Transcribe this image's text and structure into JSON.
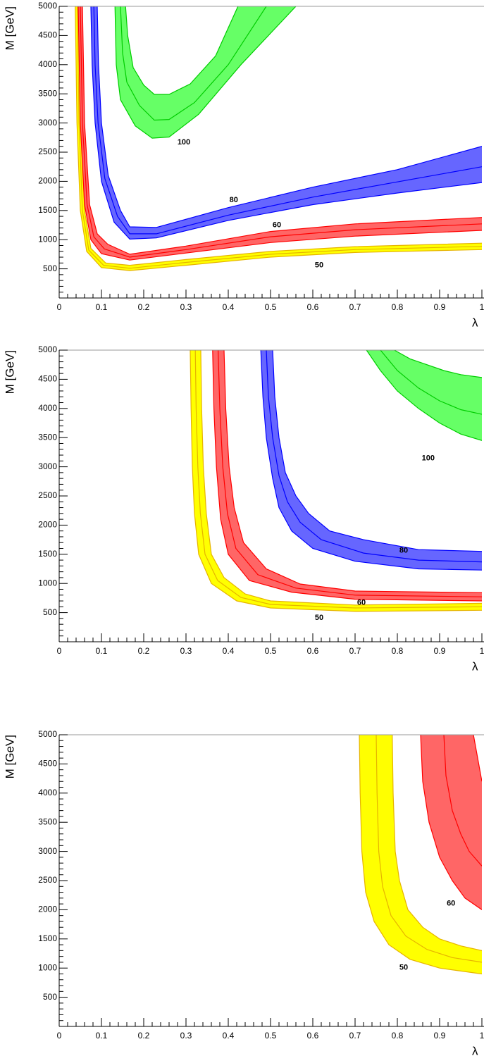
{
  "chart_data": [
    {
      "type": "band",
      "x_label": "λ",
      "y_label": "M [GeV]",
      "xlim": [
        0,
        1
      ],
      "ylim": [
        0,
        5000
      ],
      "xticks": [
        0,
        0.1,
        0.2,
        0.3,
        0.4,
        0.5,
        0.6,
        0.7,
        0.8,
        0.9,
        1
      ],
      "yticks": [
        500,
        1000,
        1500,
        2000,
        2500,
        3000,
        3500,
        4000,
        4500,
        5000
      ],
      "series": [
        {
          "name": "50",
          "color": "#e6b400",
          "fill": "#ffff00",
          "label_x": 0.615,
          "label_y": 560,
          "lower": {
            "x": [
              0.038,
              0.042,
              0.05,
              0.065,
              0.1,
              0.167,
              0.3,
              0.5,
              0.7,
              1.0
            ],
            "y": [
              5000,
              3000,
              1500,
              800,
              520,
              470,
              560,
              700,
              780,
              830
            ]
          },
          "center": {
            "x": [
              0.043,
              0.047,
              0.055,
              0.07,
              0.105,
              0.167,
              0.3,
              0.5,
              0.7,
              1.0
            ],
            "y": [
              5000,
              3000,
              1500,
              820,
              560,
              510,
              610,
              750,
              830,
              885
            ]
          },
          "upper": {
            "x": [
              0.048,
              0.052,
              0.06,
              0.075,
              0.11,
              0.167,
              0.3,
              0.5,
              0.7,
              1.0
            ],
            "y": [
              5000,
              3000,
              1500,
              850,
              600,
              560,
              660,
              800,
              880,
              940
            ]
          }
        },
        {
          "name": "60",
          "color": "#ff0000",
          "fill": "#ff6666",
          "label_x": 0.515,
          "label_y": 1250,
          "lower": {
            "x": [
              0.045,
              0.05,
              0.06,
              0.075,
              0.1,
              0.167,
              0.3,
              0.5,
              0.7,
              1.0
            ],
            "y": [
              5000,
              3000,
              1600,
              1000,
              760,
              650,
              770,
              950,
              1060,
              1160
            ]
          },
          "center": {
            "x": [
              0.05,
              0.055,
              0.066,
              0.082,
              0.107,
              0.167,
              0.3,
              0.5,
              0.7,
              1.0
            ],
            "y": [
              5000,
              3000,
              1600,
              1050,
              840,
              700,
              830,
              1050,
              1170,
              1270
            ]
          },
          "upper": {
            "x": [
              0.055,
              0.06,
              0.072,
              0.09,
              0.115,
              0.167,
              0.3,
              0.5,
              0.7,
              1.0
            ],
            "y": [
              5000,
              3000,
              1600,
              1100,
              920,
              750,
              890,
              1140,
              1270,
              1380
            ]
          }
        },
        {
          "name": "80",
          "color": "#0000ff",
          "fill": "#6666ff",
          "label_x": 0.413,
          "label_y": 1675,
          "lower": {
            "x": [
              0.075,
              0.078,
              0.085,
              0.1,
              0.13,
              0.167,
              0.23,
              0.4,
              0.6,
              0.8,
              1.0
            ],
            "y": [
              5000,
              4000,
              3000,
              2000,
              1300,
              1010,
              1030,
              1330,
              1600,
              1800,
              1980
            ]
          },
          "center": {
            "x": [
              0.082,
              0.085,
              0.092,
              0.108,
              0.138,
              0.167,
              0.23,
              0.4,
              0.6,
              0.8,
              1.0
            ],
            "y": [
              5000,
              4000,
              3000,
              2050,
              1400,
              1100,
              1100,
              1420,
              1730,
              1990,
              2250
            ]
          },
          "upper": {
            "x": [
              0.09,
              0.093,
              0.1,
              0.116,
              0.145,
              0.167,
              0.23,
              0.4,
              0.6,
              0.8,
              1.0
            ],
            "y": [
              5000,
              4000,
              3000,
              2100,
              1500,
              1220,
              1210,
              1550,
              1900,
              2200,
              2600
            ]
          }
        },
        {
          "name": "100",
          "color": "#00cc00",
          "fill": "#66ff66",
          "label_x": 0.295,
          "label_y": 2670,
          "lower": {
            "x": [
              0.132,
              0.135,
              0.145,
              0.18,
              0.22,
              0.26,
              0.33,
              0.43,
              0.56
            ],
            "y": [
              5000,
              4000,
              3400,
              2950,
              2740,
              2760,
              3150,
              4000,
              5000
            ]
          },
          "center": {
            "x": [
              0.145,
              0.15,
              0.16,
              0.19,
              0.225,
              0.26,
              0.32,
              0.4,
              0.49
            ],
            "y": [
              5000,
              4200,
              3700,
              3300,
              3050,
              3060,
              3350,
              4000,
              5000
            ]
          },
          "upper": {
            "x": [
              0.157,
              0.162,
              0.175,
              0.2,
              0.225,
              0.26,
              0.31,
              0.37,
              0.423
            ],
            "y": [
              5000,
              4500,
              3950,
              3650,
              3490,
              3490,
              3670,
              4150,
              5000
            ]
          }
        }
      ]
    },
    {
      "type": "band",
      "x_label": "λ",
      "y_label": "M [GeV]",
      "xlim": [
        0,
        1
      ],
      "ylim": [
        0,
        5000
      ],
      "xticks": [
        0,
        0.1,
        0.2,
        0.3,
        0.4,
        0.5,
        0.6,
        0.7,
        0.8,
        0.9,
        1
      ],
      "yticks": [
        500,
        1000,
        1500,
        2000,
        2500,
        3000,
        3500,
        4000,
        4500,
        5000
      ],
      "series": [
        {
          "name": "50",
          "color": "#e6b400",
          "fill": "#ffff00",
          "label_x": 0.615,
          "label_y": 410,
          "lower": {
            "x": [
              0.31,
              0.312,
              0.315,
              0.32,
              0.33,
              0.36,
              0.42,
              0.5,
              0.7,
              1.0
            ],
            "y": [
              5000,
              4000,
              3000,
              2200,
              1500,
              1000,
              700,
              580,
              520,
              540
            ]
          },
          "center": {
            "x": [
              0.322,
              0.324,
              0.328,
              0.334,
              0.345,
              0.375,
              0.43,
              0.5,
              0.7,
              1.0
            ],
            "y": [
              5000,
              4000,
              3000,
              2200,
              1500,
              1050,
              760,
              640,
              580,
              600
            ]
          },
          "upper": {
            "x": [
              0.335,
              0.337,
              0.341,
              0.348,
              0.36,
              0.39,
              0.44,
              0.5,
              0.7,
              1.0
            ],
            "y": [
              5000,
              4000,
              3000,
              2200,
              1500,
              1100,
              820,
              700,
              630,
              660
            ]
          }
        },
        {
          "name": "60",
          "color": "#ff0000",
          "fill": "#ff6666",
          "label_x": 0.715,
          "label_y": 670,
          "lower": {
            "x": [
              0.363,
              0.366,
              0.372,
              0.382,
              0.4,
              0.45,
              0.55,
              0.7,
              1.0
            ],
            "y": [
              5000,
              4000,
              3000,
              2100,
              1500,
              1050,
              850,
              730,
              700
            ]
          },
          "center": {
            "x": [
              0.376,
              0.38,
              0.387,
              0.398,
              0.418,
              0.47,
              0.56,
              0.7,
              1.0
            ],
            "y": [
              5000,
              4000,
              3000,
              2200,
              1600,
              1150,
              920,
              800,
              770
            ]
          },
          "upper": {
            "x": [
              0.39,
              0.394,
              0.402,
              0.414,
              0.436,
              0.49,
              0.57,
              0.7,
              1.0
            ],
            "y": [
              5000,
              4000,
              3000,
              2300,
              1700,
              1250,
              990,
              870,
              840
            ]
          }
        },
        {
          "name": "80",
          "color": "#0000ff",
          "fill": "#6666ff",
          "label_x": 0.815,
          "label_y": 1560,
          "lower": {
            "x": [
              0.477,
              0.482,
              0.49,
              0.505,
              0.52,
              0.55,
              0.6,
              0.7,
              0.85,
              1.0
            ],
            "y": [
              5000,
              4200,
              3500,
              2800,
              2300,
              1900,
              1600,
              1380,
              1250,
              1230
            ]
          },
          "center": {
            "x": [
              0.49,
              0.495,
              0.505,
              0.52,
              0.54,
              0.57,
              0.62,
              0.72,
              0.85,
              1.0
            ],
            "y": [
              5000,
              4200,
              3500,
              2850,
              2400,
              2050,
              1750,
              1520,
              1400,
              1370
            ]
          },
          "upper": {
            "x": [
              0.505,
              0.51,
              0.52,
              0.535,
              0.56,
              0.59,
              0.64,
              0.72,
              0.85,
              1.0
            ],
            "y": [
              5000,
              4200,
              3500,
              2900,
              2500,
              2200,
              1900,
              1750,
              1580,
              1550
            ]
          }
        },
        {
          "name": "100",
          "color": "#00cc00",
          "fill": "#66ff66",
          "label_x": 0.873,
          "label_y": 3145,
          "lower": {
            "x": [
              0.727,
              0.76,
              0.8,
              0.85,
              0.9,
              0.95,
              1.0
            ],
            "y": [
              5000,
              4650,
              4300,
              4000,
              3750,
              3560,
              3450
            ]
          },
          "center": {
            "x": [
              0.76,
              0.8,
              0.85,
              0.9,
              0.95,
              1.0
            ],
            "y": [
              5000,
              4650,
              4350,
              4130,
              3980,
              3900
            ]
          },
          "upper": {
            "x": [
              0.793,
              0.83,
              0.87,
              0.91,
              0.95,
              1.0
            ],
            "y": [
              5000,
              4850,
              4750,
              4650,
              4580,
              4530
            ]
          }
        }
      ]
    },
    {
      "type": "band",
      "x_label": "λ",
      "y_label": "M [GeV]",
      "xlim": [
        0,
        1
      ],
      "ylim": [
        0,
        5000
      ],
      "xticks": [
        0,
        0.1,
        0.2,
        0.3,
        0.4,
        0.5,
        0.6,
        0.7,
        0.8,
        0.9,
        1
      ],
      "yticks": [
        500,
        1000,
        1500,
        2000,
        2500,
        3000,
        3500,
        4000,
        4500,
        5000
      ],
      "series": [
        {
          "name": "50",
          "color": "#e6b400",
          "fill": "#ffff00",
          "label_x": 0.815,
          "label_y": 1010,
          "lower": {
            "x": [
              0.71,
              0.712,
              0.716,
              0.725,
              0.745,
              0.78,
              0.83,
              0.9,
              1.0
            ],
            "y": [
              5000,
              4000,
              3000,
              2300,
              1800,
              1400,
              1150,
              1000,
              900
            ]
          },
          "center": {
            "x": [
              0.75,
              0.752,
              0.756,
              0.765,
              0.785,
              0.82,
              0.87,
              0.93,
              1.0
            ],
            "y": [
              5000,
              4000,
              3000,
              2400,
              1900,
              1550,
              1320,
              1180,
              1100
            ]
          },
          "upper": {
            "x": [
              0.788,
              0.79,
              0.795,
              0.805,
              0.825,
              0.86,
              0.9,
              0.95,
              1.0
            ],
            "y": [
              5000,
              4000,
              3000,
              2500,
              2000,
              1700,
              1500,
              1380,
              1300
            ]
          }
        },
        {
          "name": "60",
          "color": "#ff0000",
          "fill": "#ff6666",
          "label_x": 0.927,
          "label_y": 2105,
          "lower": {
            "x": [
              0.855,
              0.86,
              0.875,
              0.9,
              0.93,
              0.96,
              1.0
            ],
            "y": [
              5000,
              4200,
              3500,
              2900,
              2500,
              2200,
              2000
            ]
          },
          "center": {
            "x": [
              0.91,
              0.915,
              0.93,
              0.95,
              0.97,
              1.0
            ],
            "y": [
              5000,
              4300,
              3700,
              3300,
              3000,
              2750
            ]
          },
          "upper": {
            "x": [
              0.98,
              0.99,
              1.0
            ],
            "y": [
              5000,
              4600,
              4200
            ]
          }
        }
      ]
    }
  ]
}
